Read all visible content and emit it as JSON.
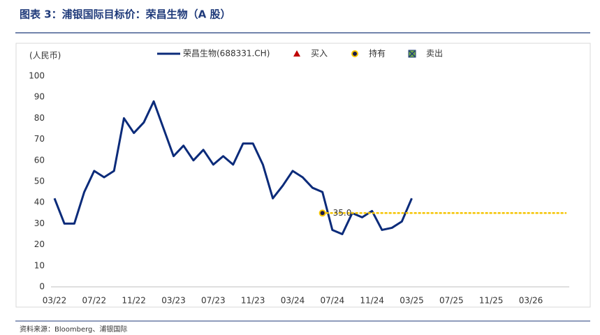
{
  "header": {
    "title": "图表 3：浦银国际目标价：荣昌生物（A 股）",
    "source": "资料来源：Bloomberg、浦银国际"
  },
  "chart_data": {
    "type": "line",
    "y_label": "(人民币)",
    "categories": [
      "03/22",
      null,
      null,
      null,
      "07/22",
      null,
      null,
      null,
      "11/22",
      null,
      null,
      null,
      "03/23",
      null,
      null,
      null,
      "07/23",
      null,
      null,
      null,
      "11/23",
      null,
      null,
      null,
      "03/24",
      null,
      null,
      null,
      "07/24",
      null,
      null,
      null,
      "11/24",
      null,
      null,
      null,
      "03/25",
      null,
      null,
      null,
      "07/25",
      null,
      null,
      null,
      "11/25",
      null,
      null,
      null,
      "03/26"
    ],
    "ylim": [
      0,
      100
    ],
    "yticks": [
      0,
      10,
      20,
      30,
      40,
      50,
      60,
      70,
      80,
      90,
      100
    ],
    "grid": false,
    "series": [
      {
        "name": "荣昌生物(688331.CH)",
        "color": "#0b2b7a",
        "values": [
          42,
          30,
          30,
          45,
          55,
          52,
          55,
          80,
          73,
          78,
          88,
          75,
          62,
          67,
          60,
          65,
          58,
          62,
          58,
          68,
          68,
          58,
          42,
          48,
          55,
          52,
          47,
          45,
          27,
          25,
          35,
          33,
          36,
          27,
          28,
          31,
          42,
          null,
          null,
          null,
          null,
          null,
          null,
          null,
          null,
          null,
          null,
          null,
          null
        ]
      },
      {
        "name": "买入",
        "color": "#c00000",
        "symbol": "triangle",
        "values": [
          null,
          null,
          null,
          null,
          null,
          null,
          null,
          null,
          null,
          null,
          null,
          null,
          null,
          null,
          null,
          null,
          null,
          null,
          null,
          null,
          null,
          null,
          null,
          null,
          null,
          null,
          null,
          null,
          null,
          null,
          null,
          null,
          null,
          null,
          null,
          null,
          null,
          null,
          null,
          null,
          null,
          null,
          null,
          null,
          null,
          null,
          null,
          null,
          null
        ]
      },
      {
        "name": "持有",
        "color": "#f5c400",
        "symbol": "circle",
        "values": [
          null,
          null,
          null,
          null,
          null,
          null,
          null,
          null,
          null,
          null,
          null,
          null,
          null,
          null,
          null,
          null,
          null,
          null,
          null,
          null,
          null,
          null,
          null,
          null,
          null,
          null,
          null,
          35,
          null,
          null,
          null,
          null,
          null,
          null,
          null,
          null,
          null,
          null,
          null,
          null,
          null,
          null,
          null,
          null,
          null,
          null,
          null,
          null,
          null
        ],
        "value_labels": [
          null,
          null,
          null,
          null,
          null,
          null,
          null,
          null,
          null,
          null,
          null,
          null,
          null,
          null,
          null,
          null,
          null,
          null,
          null,
          null,
          null,
          null,
          null,
          null,
          null,
          null,
          null,
          "35.0",
          null,
          null,
          null,
          null,
          null,
          null,
          null,
          null,
          null,
          null,
          null,
          null,
          null,
          null,
          null,
          null,
          null,
          null,
          null,
          null,
          null
        ]
      },
      {
        "name": "卖出",
        "color": "#70ad47",
        "symbol": "square",
        "values": [
          null,
          null,
          null,
          null,
          null,
          null,
          null,
          null,
          null,
          null,
          null,
          null,
          null,
          null,
          null,
          null,
          null,
          null,
          null,
          null,
          null,
          null,
          null,
          null,
          null,
          null,
          null,
          null,
          null,
          null,
          null,
          null,
          null,
          null,
          null,
          null,
          null,
          null,
          null,
          null,
          null,
          null,
          null,
          null,
          null,
          null,
          null,
          null,
          null
        ]
      }
    ]
  }
}
